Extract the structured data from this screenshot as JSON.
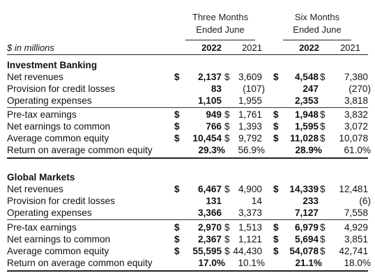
{
  "headers": {
    "three_months": [
      "Three Months",
      "Ended June"
    ],
    "six_months": [
      "Six Months",
      "Ended June"
    ],
    "units": "$ in millions",
    "years": [
      "2022",
      "2021",
      "2022",
      "2021"
    ]
  },
  "sections": [
    {
      "title": "Investment Banking",
      "rows": [
        {
          "label": "Net revenues",
          "d1": "$",
          "a": "2,137",
          "d2": "$",
          "b": "3,609",
          "d3": "$",
          "c": "4,548",
          "d4": "$",
          "d": "7,380"
        },
        {
          "label": "Provision for credit losses",
          "d1": "",
          "a": "83",
          "d2": "",
          "b": "(107)",
          "d3": "",
          "c": "247",
          "d4": "",
          "d": "(270)"
        },
        {
          "label": "Operating expenses",
          "d1": "",
          "a": "1,105",
          "d2": "",
          "b": "1,955",
          "d3": "",
          "c": "2,353",
          "d4": "",
          "d": "3,818"
        },
        {
          "label": "Pre-tax earnings",
          "d1": "$",
          "a": "949",
          "d2": "$",
          "b": "1,761",
          "d3": "$",
          "c": "1,948",
          "d4": "$",
          "d": "3,832"
        },
        {
          "label": "Net earnings to common",
          "d1": "$",
          "a": "766",
          "d2": "$",
          "b": "1,393",
          "d3": "$",
          "c": "1,595",
          "d4": "$",
          "d": "3,072"
        },
        {
          "label": "Average common equity",
          "d1": "$",
          "a": "10,454",
          "d2": "$",
          "b": "9,792",
          "d3": "$",
          "c": "11,028",
          "d4": "$",
          "d": "10,078"
        },
        {
          "label": "Return on average common equity",
          "d1": "",
          "a": "29.3%",
          "d2": "",
          "b": "56.9%",
          "d3": "",
          "c": "28.9%",
          "d4": "",
          "d": "61.0%"
        }
      ]
    },
    {
      "title": "Global Markets",
      "rows": [
        {
          "label": "Net revenues",
          "d1": "$",
          "a": "6,467",
          "d2": "$",
          "b": "4,900",
          "d3": "$",
          "c": "14,339",
          "d4": "$",
          "d": "12,481"
        },
        {
          "label": "Provision for credit losses",
          "d1": "",
          "a": "131",
          "d2": "",
          "b": "14",
          "d3": "",
          "c": "233",
          "d4": "",
          "d": "(6)"
        },
        {
          "label": "Operating expenses",
          "d1": "",
          "a": "3,366",
          "d2": "",
          "b": "3,373",
          "d3": "",
          "c": "7,127",
          "d4": "",
          "d": "7,558"
        },
        {
          "label": "Pre-tax earnings",
          "d1": "$",
          "a": "2,970",
          "d2": "$",
          "b": "1,513",
          "d3": "$",
          "c": "6,979",
          "d4": "$",
          "d": "4,929"
        },
        {
          "label": "Net earnings to common",
          "d1": "$",
          "a": "2,367",
          "d2": "$",
          "b": "1,121",
          "d3": "$",
          "c": "5,694",
          "d4": "$",
          "d": "3,851"
        },
        {
          "label": "Average common equity",
          "d1": "$",
          "a": "55,595",
          "d2": "$",
          "b": "44,430",
          "d3": "$",
          "c": "54,078",
          "d4": "$",
          "d": "42,741"
        },
        {
          "label": "Return on average common equity",
          "d1": "",
          "a": "17.0%",
          "d2": "",
          "b": "10.1%",
          "d3": "",
          "c": "21.1%",
          "d4": "",
          "d": "18.0%"
        }
      ]
    }
  ]
}
